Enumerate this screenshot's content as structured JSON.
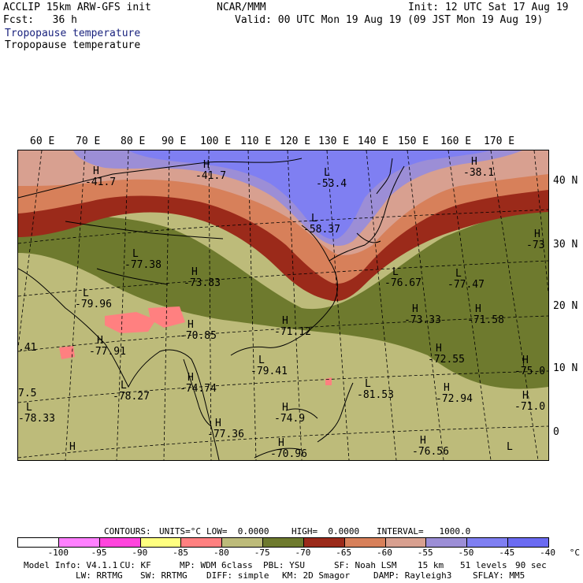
{
  "header": {
    "line1_left": "ACCLIP 15km ARW-GFS init",
    "line1_center": "NCAR/MMM",
    "line1_right": "Init: 12 UTC Sat 17 Aug 19",
    "line2_left": "Fcst:   36 h",
    "line2_right": "Valid: 00 UTC Mon 19 Aug 19 (09 JST Mon 19 Aug 19)",
    "field_title_1": "Tropopause temperature",
    "field_title_2": "Tropopause temperature"
  },
  "longitude_labels": [
    "60 E",
    "70 E",
    "80 E",
    "90 E",
    "100 E",
    "110 E",
    "120 E",
    "130 E",
    "140 E",
    "150 E",
    "160 E",
    "170 E"
  ],
  "latitude_labels": [
    "40 N",
    "30 N",
    "20 N",
    "10 N",
    "0"
  ],
  "map_markers": [
    {
      "type": "H",
      "value": "-41.7"
    },
    {
      "type": "H",
      "value": "-41.7"
    },
    {
      "type": "L",
      "value": "-53.4"
    },
    {
      "type": "H",
      "value": "-38.1"
    },
    {
      "type": "L",
      "value": "-58.37"
    },
    {
      "type": "L",
      "value": "-77.38"
    },
    {
      "type": "H",
      "value": "-73.83"
    },
    {
      "type": "L",
      "value": "-79.96"
    },
    {
      "type": "H",
      "value": "-70.85"
    },
    {
      "type": "H",
      "value": "-71.12"
    },
    {
      "type": "H",
      "value": "-77.91"
    },
    {
      "type": "L",
      "value": "-79.41"
    },
    {
      "type": "H",
      "value": "-74.74"
    },
    {
      "type": "L",
      "value": "-78.27"
    },
    {
      "type": "H",
      "value": "-77.36"
    },
    {
      "type": "L",
      "value": "-78.33"
    },
    {
      "type": "H",
      "value": "-74.9"
    },
    {
      "type": "L",
      "value": "-81.53"
    },
    {
      "type": "L",
      "value": "-76.67"
    },
    {
      "type": "L",
      "value": "-77.47"
    },
    {
      "type": "H",
      "value": "-73.33"
    },
    {
      "type": "H",
      "value": "-71.58"
    },
    {
      "type": "H",
      "value": "-72.55"
    },
    {
      "type": "H",
      "value": "-72.94"
    },
    {
      "type": "H",
      "value": "-73"
    },
    {
      "type": "H",
      "value": "-75.0"
    },
    {
      "type": "H",
      "value": "-71.0"
    },
    {
      "type": "H",
      "value": "-70.96"
    },
    {
      "type": "H",
      "value": "-76.56"
    },
    {
      "type": "H",
      "value": ""
    },
    {
      "type": "L",
      "value": ""
    },
    {
      "type": "",
      "value": ".41"
    },
    {
      "type": "",
      "value": "7.5"
    }
  ],
  "contours_line": {
    "contours": "CONTOURS:",
    "units": "UNITS=°C",
    "low": "LOW=  0.0000",
    "high": "HIGH=  0.0000",
    "interval": "INTERVAL=   1000.0"
  },
  "colorbar": {
    "colors": [
      "#ffffff",
      "#ff80ff",
      "#ff44dd",
      "#ffff80",
      "#ff8080",
      "#bdbb7a",
      "#6e7a2e",
      "#9b2a1a",
      "#d7805a",
      "#d8a090",
      "#9c8ed6",
      "#7f7ff2",
      "#6b6bf2"
    ],
    "labels": [
      "-100",
      "-95",
      "-90",
      "-85",
      "-80",
      "-75",
      "-70",
      "-65",
      "-60",
      "-55",
      "-50",
      "-45",
      "-40",
      "°C"
    ]
  },
  "footer": {
    "model_info": "Model Info: V4.1.1",
    "cu": "CU: KF",
    "mp": "MP: WDM 6class",
    "pbl": "PBL: YSU",
    "sf": "SF: Noah LSM",
    "res": "15 km",
    "levels": "51 levels",
    "dt": "90 sec",
    "lw": "LW: RRTMG",
    "sw": "SW: RRTMG",
    "diff": "DIFF: simple",
    "km": "KM: 2D Smagor",
    "damp": "DAMP: Rayleigh3",
    "sflay": "SFLAY: MM5"
  }
}
